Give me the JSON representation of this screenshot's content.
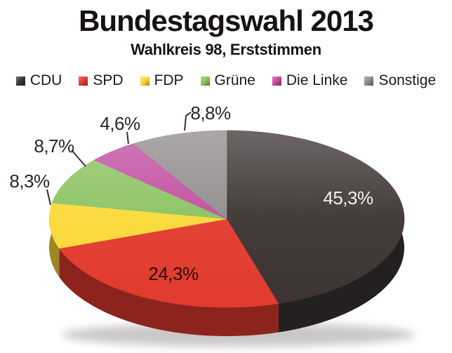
{
  "header": {
    "title": "Bundestagswahl 2013",
    "subtitle": "Wahlkreis 98, Erststimmen"
  },
  "chart_data": {
    "type": "pie",
    "title": "Bundestagswahl 2013",
    "subtitle": "Wahlkreis 98, Erststimmen",
    "unit": "percent",
    "legend_position": "top",
    "effect_3d": true,
    "start_angle_deg": 0,
    "direction": "clockwise",
    "slices": [
      {
        "name": "CDU",
        "value": 45.3,
        "label": "45,3%",
        "color": "#3c3433",
        "label_placement": "inside",
        "label_color": "#f4f1ef"
      },
      {
        "name": "SPD",
        "value": 24.3,
        "label": "24,3%",
        "color": "#e23a2e",
        "label_placement": "inside",
        "label_color": "#26110d"
      },
      {
        "name": "FDP",
        "value": 8.3,
        "label": "8,3%",
        "color": "#fbd938",
        "label_placement": "outside",
        "label_color": "#2a2525"
      },
      {
        "name": "Grüne",
        "value": 8.7,
        "label": "8,7%",
        "color": "#8bc261",
        "label_placement": "outside",
        "label_color": "#2a2525"
      },
      {
        "name": "Die Linke",
        "value": 4.6,
        "label": "4,6%",
        "color": "#c04d9f",
        "label_placement": "outside",
        "label_color": "#2a2525"
      },
      {
        "name": "Sonstige",
        "value": 8.8,
        "label": "8,8%",
        "color": "#908b8c",
        "label_placement": "outside",
        "label_color": "#2a2525"
      }
    ]
  }
}
